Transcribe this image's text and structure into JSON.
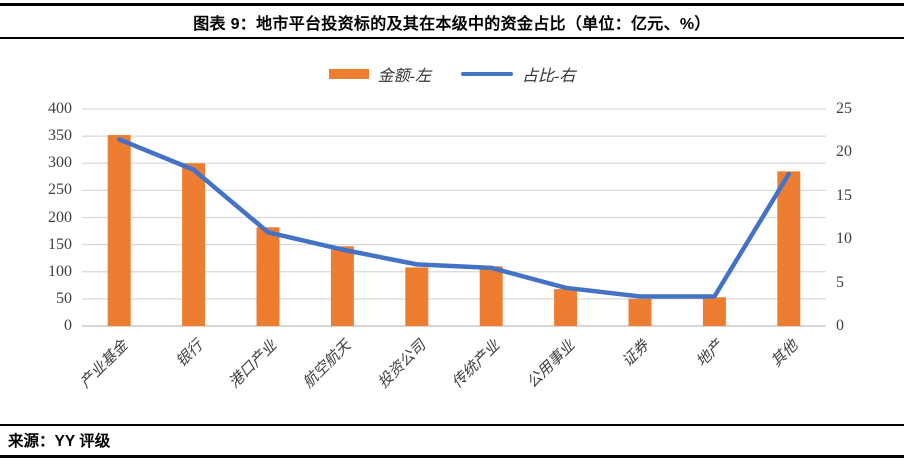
{
  "header": {
    "title": "图表 9：地市平台投资标的及其在本级中的资金占比（单位：亿元、%）"
  },
  "footer": {
    "source": "来源：YY 评级"
  },
  "legend": [
    {
      "label": "金额-左",
      "type": "bar",
      "color": "#ED7D31"
    },
    {
      "label": "占比-右",
      "type": "line",
      "color": "#4472C4"
    }
  ],
  "colors": {
    "bar": "#ED7D31",
    "line": "#4472C4",
    "gridline": "#D9D9D9",
    "axis_line": "#BFBFBF",
    "tick_text": "#404040"
  },
  "chart_data": {
    "type": "bar",
    "combo": "bar+line",
    "title": "图表 9：地市平台投资标的及其在本级中的资金占比（单位：亿元、%）",
    "categories": [
      "产业基金",
      "银行",
      "港口产业",
      "航空航天",
      "投资公司",
      "传统产业",
      "公用事业",
      "证券",
      "地产",
      "其他"
    ],
    "series": [
      {
        "name": "金额-左",
        "type": "bar",
        "axis": "left",
        "unit": "亿元",
        "color": "#ED7D31",
        "values": [
          352,
          300,
          182,
          147,
          108,
          110,
          68,
          50,
          53,
          285
        ]
      },
      {
        "name": "占比-右",
        "type": "line",
        "axis": "right",
        "unit": "%",
        "color": "#4472C4",
        "values": [
          21.5,
          18.0,
          10.8,
          8.8,
          7.1,
          6.7,
          4.4,
          3.4,
          3.4,
          17.5
        ]
      }
    ],
    "left_axis": {
      "min": 0,
      "max": 400,
      "step": 50,
      "ticks": [
        0,
        50,
        100,
        150,
        200,
        250,
        300,
        350,
        400
      ]
    },
    "right_axis": {
      "min": 0,
      "max": 25,
      "step": 5,
      "ticks": [
        0,
        5,
        10,
        15,
        20,
        25
      ]
    },
    "grid": true,
    "legend_position": "top"
  }
}
